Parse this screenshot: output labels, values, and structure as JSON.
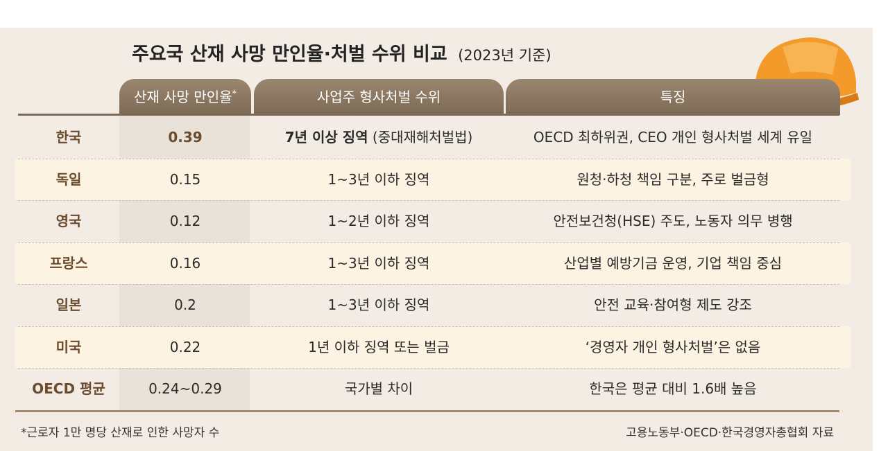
{
  "title": "주요국 산재 사망 만인율·처벌 수위 비교",
  "subtitle": "(2023년 기준)",
  "headers": [
    {
      "text": "산재 사망 만인율",
      "mark": "*"
    },
    {
      "text": "사업주 형사처벌 수위"
    },
    {
      "text": "특징"
    }
  ],
  "rows": [
    {
      "country": "한국",
      "rate": "0.39",
      "highlight": false,
      "emphasis": true,
      "penalty": [
        {
          "text": "7년 이상 징역",
          "bold": true
        },
        {
          "text": " (중대재해처벌법)",
          "bold": false
        }
      ],
      "feature": "OECD 최하위권, CEO 개인 형사처벌 세계 유일"
    },
    {
      "country": "독일",
      "rate": "0.15",
      "highlight": true,
      "emphasis": false,
      "penalty": [
        {
          "text": "1~3년 이하 징역",
          "bold": false
        }
      ],
      "feature": "원청·하청 책임 구분, 주로 벌금형"
    },
    {
      "country": "영국",
      "rate": "0.12",
      "highlight": false,
      "emphasis": false,
      "penalty": [
        {
          "text": "1~2년 이하 징역",
          "bold": false
        }
      ],
      "feature": "안전보건청(HSE) 주도, 노동자 의무 병행"
    },
    {
      "country": "프랑스",
      "rate": "0.16",
      "highlight": true,
      "emphasis": false,
      "penalty": [
        {
          "text": "1~3년 이하 징역",
          "bold": false
        }
      ],
      "feature": "산업별 예방기금 운영, 기업 책임 중심"
    },
    {
      "country": "일본",
      "rate": "0.2",
      "highlight": false,
      "emphasis": false,
      "penalty": [
        {
          "text": "1~3년 이하 징역",
          "bold": false
        }
      ],
      "feature": "안전 교육·참여형 제도 강조"
    },
    {
      "country": "미국",
      "rate": "0.22",
      "highlight": true,
      "emphasis": false,
      "penalty": [
        {
          "text": "1년 이하 징역 또는 벌금",
          "bold": false
        }
      ],
      "feature": "‘경영자 개인 형사처벌’은 없음"
    },
    {
      "country": "OECD 평균",
      "rate": "0.24~0.29",
      "highlight": false,
      "emphasis": false,
      "penalty": [
        {
          "text": "국가별 차이",
          "bold": false
        }
      ],
      "feature": "한국은 평균 대비 1.6배 높음"
    }
  ],
  "footnote": "*근로자 1만 명당 산재로 인한 사망자 수",
  "source": "고용노동부·OECD·한국경영자총협회 자료"
}
